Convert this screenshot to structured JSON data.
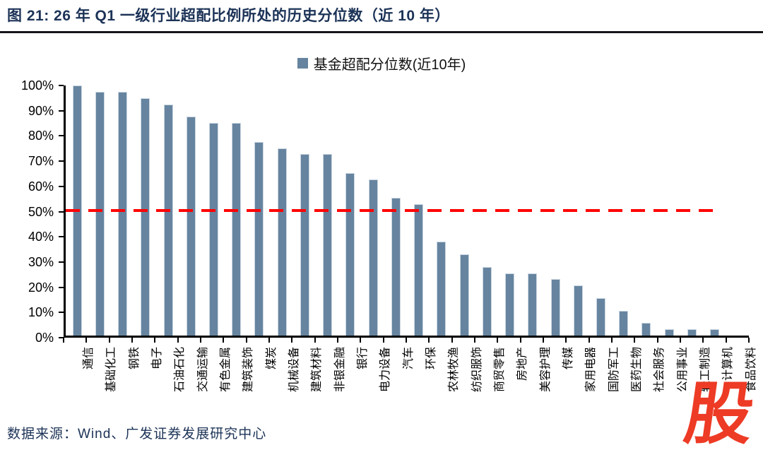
{
  "figure": {
    "title": "图 21:  26 年 Q1 一级行业超配比例所处的历史分位数（近 10 年）",
    "source": "数据来源：Wind、广发证券发展研究中心",
    "watermark": "股"
  },
  "colors": {
    "bar": "#66849F",
    "bar_border": "#CAD6E2",
    "reference_line": "#FF0000",
    "title_text": "#1C3357",
    "rule": "#15151c",
    "watermark": "#ED3B25",
    "axis": "#000000"
  },
  "chart_data": {
    "type": "bar",
    "legend": "基金超配分位数(近10年)",
    "legend_position": "top-center",
    "title": "图 21:  26 年 Q1 一级行业超配比例所处的历史分位数（近 10 年）",
    "unit": "%",
    "ylim": [
      0,
      100
    ],
    "ytick_step": 10,
    "ytick_labels": [
      "0%",
      "10%",
      "20%",
      "30%",
      "40%",
      "50%",
      "60%",
      "70%",
      "80%",
      "90%",
      "100%"
    ],
    "reference_line_value": 50,
    "grid": false,
    "categories": [
      "通信",
      "基础化工",
      "钢铁",
      "电子",
      "石油石化",
      "交通运输",
      "有色金属",
      "建筑装饰",
      "煤炭",
      "机械设备",
      "建筑材料",
      "非银金融",
      "银行",
      "电力设备",
      "汽车",
      "环保",
      "农林牧渔",
      "纺织服饰",
      "商贸零售",
      "房地产",
      "美容护理",
      "传媒",
      "家用电器",
      "国防军工",
      "医药生物",
      "社会服务",
      "公用事业",
      "轻工制造",
      "计算机",
      "食品饮料"
    ],
    "values": [
      100,
      97.5,
      97.5,
      95,
      92.5,
      87.5,
      85,
      85,
      77.5,
      75,
      72.5,
      72.5,
      65,
      62.5,
      55,
      52.5,
      37.5,
      32.5,
      27.5,
      25,
      25,
      22.5,
      20,
      15,
      10,
      5,
      2.5,
      2.5,
      2.5,
      0
    ]
  }
}
